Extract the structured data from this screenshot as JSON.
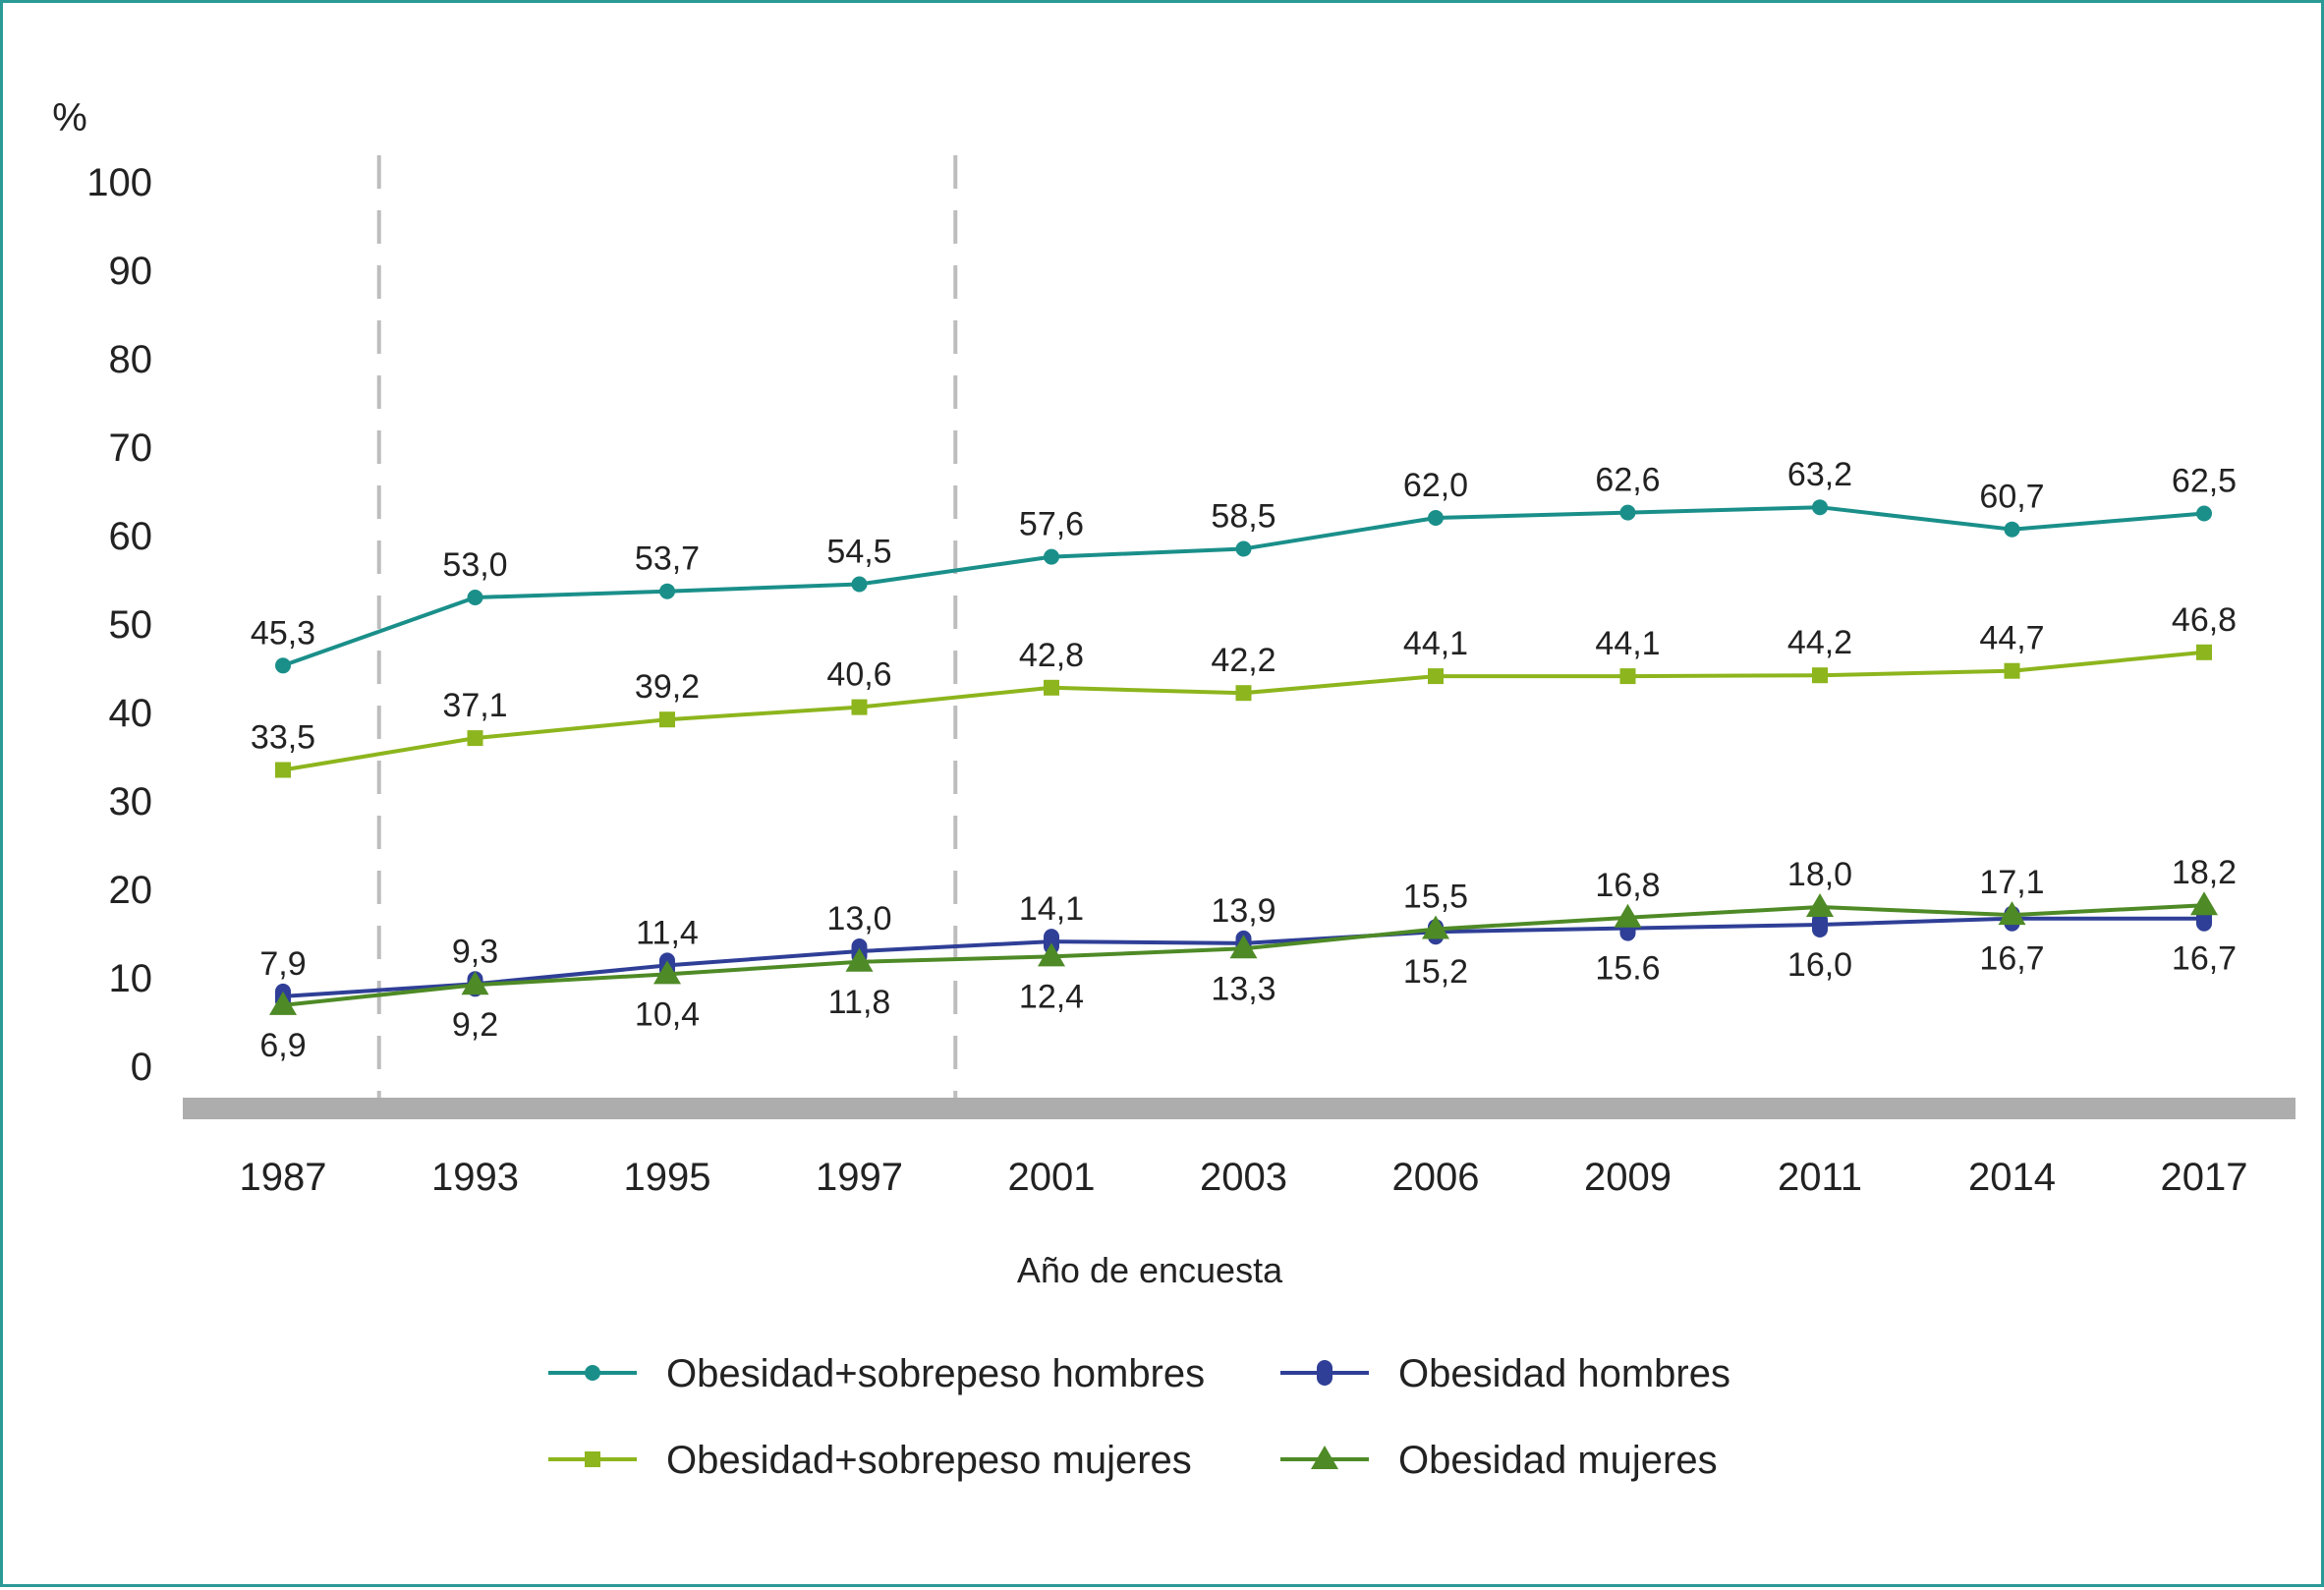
{
  "chart_data": {
    "type": "line",
    "ylabel": "%",
    "xlabel": "Año de encuesta",
    "ylim": [
      0,
      100
    ],
    "yticks": [
      "0",
      "10",
      "20",
      "30",
      "40",
      "50",
      "60",
      "70",
      "80",
      "90",
      "100"
    ],
    "categories": [
      "1987",
      "1993",
      "1995",
      "1997",
      "2001",
      "2003",
      "2006",
      "2009",
      "2011",
      "2014",
      "2017"
    ],
    "grid": false,
    "legend_position": "bottom",
    "series": [
      {
        "name": "Obesidad+sobrepeso hombres",
        "color": "#1a8f8a",
        "marker": "circle",
        "values": [
          45.3,
          53.0,
          53.7,
          54.5,
          57.6,
          58.5,
          62.0,
          62.6,
          63.2,
          60.7,
          62.5
        ],
        "labels": [
          "45,3",
          "53,0",
          "53,7",
          "54,5",
          "57,6",
          "58,5",
          "62,0",
          "62,6",
          "63,2",
          "60,7",
          "62,5"
        ],
        "label_pos": "above"
      },
      {
        "name": "Obesidad+sobrepeso mujeres",
        "color": "#8db51d",
        "marker": "square",
        "values": [
          33.5,
          37.1,
          39.2,
          40.6,
          42.8,
          42.2,
          44.1,
          44.1,
          44.2,
          44.7,
          46.8
        ],
        "labels": [
          "33,5",
          "37,1",
          "39,2",
          "40,6",
          "42,8",
          "42,2",
          "44,1",
          "44,1",
          "44,2",
          "44,7",
          "46,8"
        ],
        "label_pos": "above"
      },
      {
        "name": "Obesidad hombres",
        "color": "#2f3f97",
        "marker": "capsule",
        "values": [
          7.9,
          9.3,
          11.4,
          13.0,
          14.1,
          13.9,
          15.2,
          15.6,
          16.0,
          16.7,
          16.7
        ],
        "labels": [
          "7,9",
          "9,3",
          "11,4",
          "13,0",
          "14,1",
          "13,9",
          "15,2",
          "15.6",
          "16,0",
          "16,7",
          "16,7"
        ],
        "label_pos": [
          "above",
          "above",
          "above",
          "above",
          "above",
          "above",
          "below",
          "below",
          "below",
          "below",
          "below"
        ]
      },
      {
        "name": "Obesidad mujeres",
        "color": "#4e8a26",
        "marker": "triangle",
        "values": [
          6.9,
          9.2,
          10.4,
          11.8,
          12.4,
          13.3,
          15.5,
          16.8,
          18.0,
          17.1,
          18.2
        ],
        "labels": [
          "6,9",
          "9,2",
          "10,4",
          "11,8",
          "12,4",
          "13,3",
          "15,5",
          "16,8",
          "18,0",
          "17,1",
          "18,2"
        ],
        "label_pos": [
          "below",
          "below",
          "below",
          "below",
          "below",
          "below",
          "above",
          "above",
          "above",
          "above",
          "above"
        ]
      }
    ],
    "separator_after_categories": [
      "1987",
      "1997"
    ],
    "axis_band_color": "#adadad",
    "separator_color": "#bdbdbd"
  }
}
